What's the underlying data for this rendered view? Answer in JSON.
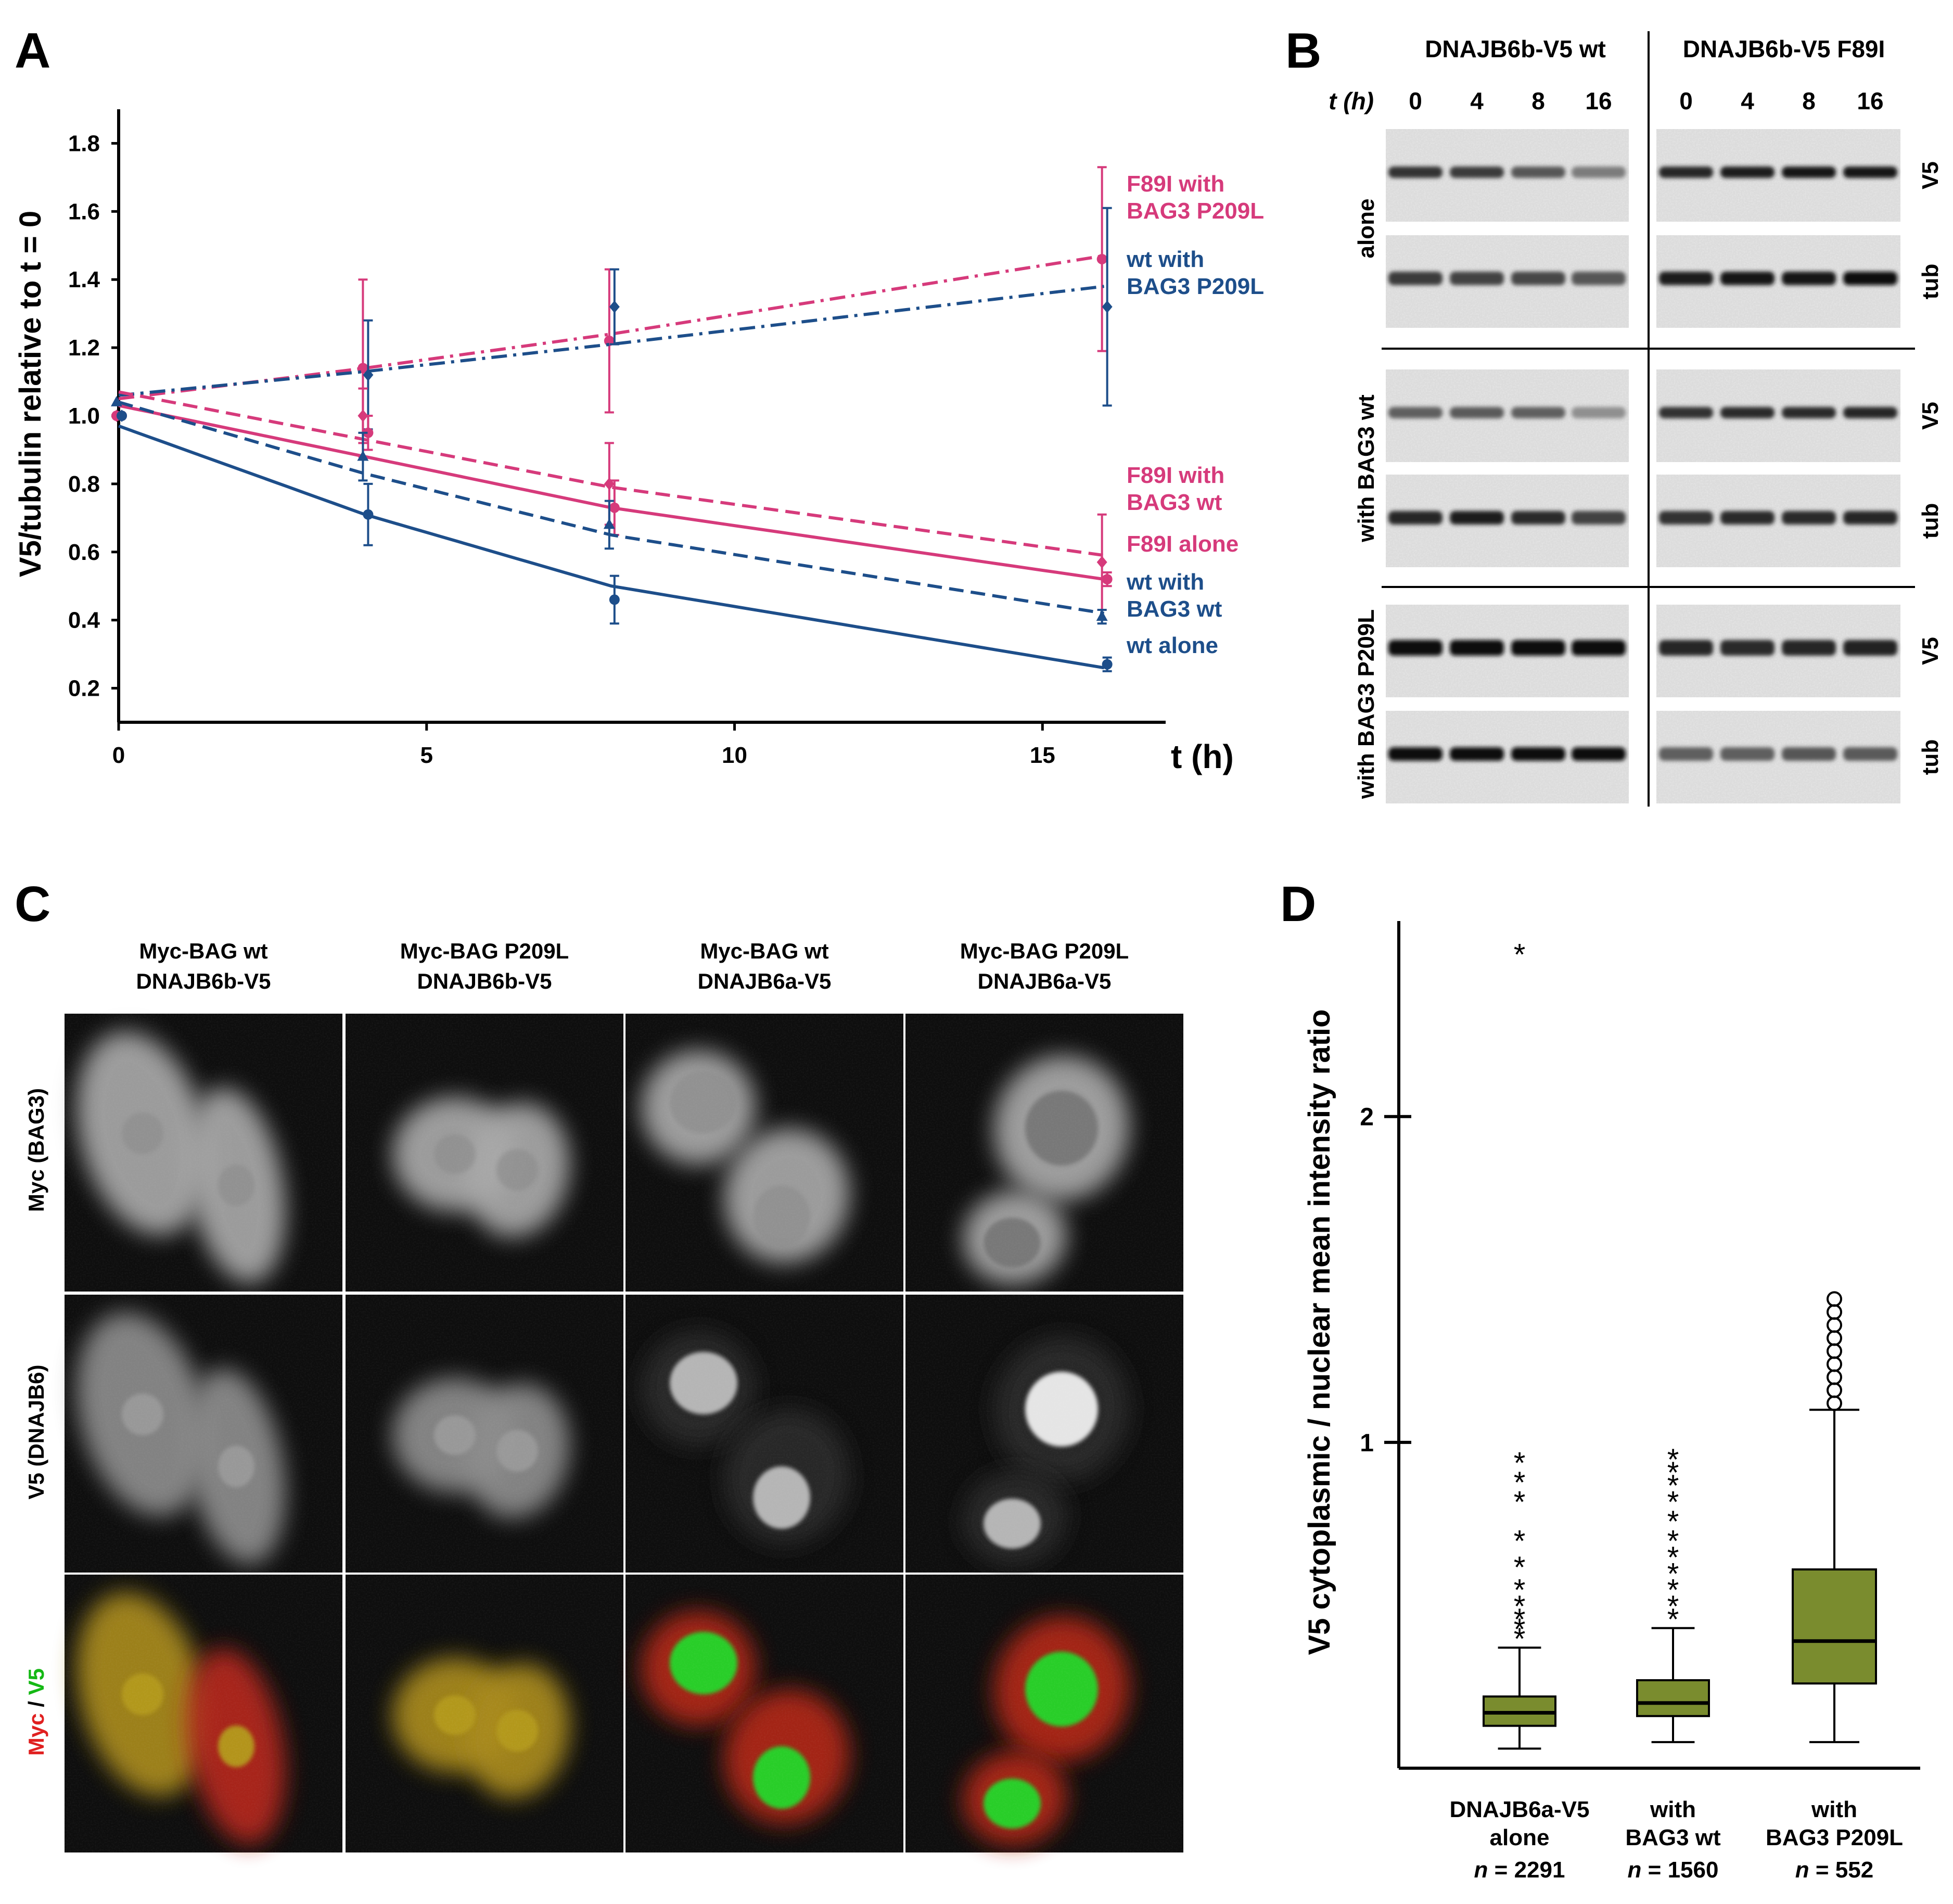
{
  "colors": {
    "pink": "#d63a7b",
    "blue": "#1d4e8a",
    "olive": "#7a8c2e",
    "black": "#000000",
    "red": "#e02020",
    "green": "#14b814"
  },
  "panelA": {
    "letter": "A",
    "ylabel": "V5/tubulin relative to t = 0",
    "xlabel": "t (h)",
    "chart_data": {
      "type": "line",
      "xlim": [
        0,
        17
      ],
      "ylim": [
        0.1,
        1.9
      ],
      "x_ticks": [
        0,
        5,
        10,
        15
      ],
      "x_tick_labels": [
        "0",
        "5",
        "10",
        "15"
      ],
      "y_ticks": [
        0.2,
        0.4,
        0.6,
        0.8,
        1.0,
        1.2,
        1.4,
        1.6,
        1.8
      ],
      "y_tick_labels": [
        "0.2",
        "0.4",
        "0.6",
        "0.8",
        "1.0",
        "1.2",
        "1.4",
        "1.6",
        "1.8"
      ],
      "x": [
        0,
        4,
        8,
        16
      ],
      "series": [
        {
          "name": "F89I with BAG3 P209L",
          "label1": "F89I with",
          "label2": "BAG3 P209L",
          "color": "pink",
          "style": "dashdot",
          "marker": "circle",
          "points": [
            1.0,
            1.14,
            1.22,
            1.46
          ],
          "errors": [
            0.0,
            0.26,
            0.21,
            0.27
          ],
          "fit": [
            1.05,
            1.14,
            1.24,
            1.47
          ]
        },
        {
          "name": "wt with BAG3 P209L",
          "label1": "wt with",
          "label2": "BAG3 P209L",
          "color": "blue",
          "style": "dashdot",
          "marker": "diamond",
          "points": [
            1.0,
            1.12,
            1.32,
            1.32
          ],
          "errors": [
            0.0,
            0.16,
            0.11,
            0.29
          ],
          "fit": [
            1.06,
            1.13,
            1.21,
            1.38
          ]
        },
        {
          "name": "F89I with BAG3 wt",
          "label1": "F89I with",
          "label2": "BAG3 wt",
          "color": "pink",
          "style": "dashed",
          "marker": "diamond",
          "points": [
            1.0,
            1.0,
            0.8,
            0.57
          ],
          "errors": [
            0.0,
            0.08,
            0.12,
            0.14
          ],
          "fit": [
            1.07,
            0.93,
            0.79,
            0.59
          ]
        },
        {
          "name": "F89I alone",
          "label1": "F89I alone",
          "label2": "",
          "color": "pink",
          "style": "solid",
          "marker": "circle",
          "points": [
            1.0,
            0.95,
            0.73,
            0.52
          ],
          "errors": [
            0.0,
            0.05,
            0.08,
            0.02
          ],
          "fit": [
            1.03,
            0.88,
            0.73,
            0.52
          ]
        },
        {
          "name": "wt with BAG3 wt",
          "label1": "wt with",
          "label2": "BAG3 wt",
          "color": "blue",
          "style": "dashed",
          "marker": "triangle",
          "points": [
            1.04,
            0.88,
            0.68,
            0.41
          ],
          "errors": [
            0.0,
            0.07,
            0.07,
            0.02
          ],
          "fit": [
            1.04,
            0.83,
            0.65,
            0.42
          ]
        },
        {
          "name": "wt alone",
          "label1": "wt alone",
          "label2": "",
          "color": "blue",
          "style": "solid",
          "marker": "circle",
          "points": [
            1.0,
            0.71,
            0.46,
            0.27
          ],
          "errors": [
            0.0,
            0.09,
            0.07,
            0.02
          ],
          "fit": [
            0.97,
            0.71,
            0.5,
            0.26
          ]
        }
      ]
    }
  },
  "panelB": {
    "letter": "B",
    "groups": [
      "DNAJB6b-V5 wt",
      "DNAJB6b-V5 F89I"
    ],
    "time_label": "t (h)",
    "times": [
      "0",
      "4",
      "8",
      "16"
    ],
    "rows": [
      "alone",
      "with BAG3 wt",
      "with BAG3 P209L"
    ],
    "bands": [
      "V5",
      "tub"
    ],
    "intensity": [
      [
        [
          0.8,
          0.75,
          0.6,
          0.4
        ],
        [
          0.85,
          0.9,
          0.92,
          0.95
        ],
        [
          0.75,
          0.7,
          0.68,
          0.6
        ],
        [
          0.9,
          0.92,
          0.95,
          1.0
        ]
      ],
      [
        [
          0.55,
          0.58,
          0.55,
          0.3
        ],
        [
          0.8,
          0.82,
          0.82,
          0.84
        ],
        [
          0.85,
          0.9,
          0.82,
          0.7
        ],
        [
          0.8,
          0.82,
          0.82,
          0.85
        ]
      ],
      [
        [
          1.0,
          1.0,
          1.0,
          1.0
        ],
        [
          0.85,
          0.82,
          0.85,
          0.88
        ],
        [
          1.0,
          1.0,
          1.0,
          1.0
        ],
        [
          0.55,
          0.55,
          0.6,
          0.58
        ]
      ]
    ]
  },
  "panelC": {
    "letter": "C",
    "columns": [
      {
        "line1": "Myc-BAG wt",
        "line2": "DNAJB6b-V5"
      },
      {
        "line1": "Myc-BAG P209L",
        "line2": "DNAJB6b-V5"
      },
      {
        "line1": "Myc-BAG wt",
        "line2": "DNAJB6a-V5"
      },
      {
        "line1": "Myc-BAG P209L",
        "line2": "DNAJB6a-V5"
      }
    ],
    "rows": [
      "Myc (BAG3)",
      "V5 (DNAJB6)"
    ],
    "merge_label": {
      "myc": "Myc",
      "sep": " / ",
      "v5": "V5"
    }
  },
  "panelD": {
    "letter": "D",
    "ylabel": "V5 cytoplasmic / nuclear mean intensity ratio",
    "chart_data": {
      "type": "box",
      "ylim": [
        0,
        2.6
      ],
      "y_ticks": [
        1,
        2
      ],
      "y_tick_labels": [
        "1",
        "2"
      ],
      "categories": [
        {
          "line1": "DNAJB6a-V5",
          "line2": "alone",
          "n_label": "n",
          "n_value": " = 2291",
          "whisker_low": 0.06,
          "q1": 0.13,
          "median": 0.17,
          "q3": 0.22,
          "whisker_high": 0.37,
          "outlier_mark": "star",
          "outliers": [
            0.4,
            0.43,
            0.46,
            0.5,
            0.55,
            0.62,
            0.7,
            0.82,
            0.88,
            0.94,
            2.5
          ]
        },
        {
          "line1": "with",
          "line2": "BAG3 wt",
          "n_label": "n",
          "n_value": " = 1560",
          "whisker_low": 0.08,
          "q1": 0.16,
          "median": 0.2,
          "q3": 0.27,
          "whisker_high": 0.43,
          "outlier_mark": "star",
          "outliers": [
            0.46,
            0.5,
            0.55,
            0.6,
            0.65,
            0.7,
            0.76,
            0.82,
            0.87,
            0.91,
            0.95
          ]
        },
        {
          "line1": "with",
          "line2": "BAG3 P209L",
          "n_label": "n",
          "n_value": " = 552",
          "whisker_low": 0.08,
          "q1": 0.26,
          "median": 0.39,
          "q3": 0.61,
          "whisker_high": 1.1,
          "outlier_mark": "circle",
          "outliers": [
            1.12,
            1.16,
            1.2,
            1.24,
            1.28,
            1.32,
            1.36,
            1.4,
            1.44
          ]
        }
      ]
    }
  }
}
